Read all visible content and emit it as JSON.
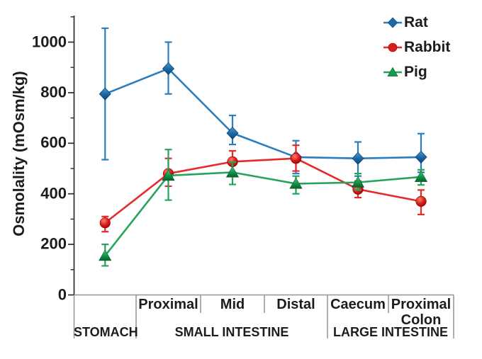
{
  "chart_data": {
    "type": "line",
    "title": "",
    "ylabel": "Osmolality (mOsm/kg)",
    "xlabel": "",
    "ylim": [
      0,
      1105
    ],
    "grid": "off",
    "legend_position": "top-right",
    "yticks": [
      0,
      200,
      400,
      600,
      800,
      1000
    ],
    "ytick_labels": [
      "0",
      "200",
      "400",
      "600",
      "800",
      "1000"
    ],
    "minor_yticks": [
      100,
      300,
      500,
      700,
      900,
      1100
    ],
    "x_axis": {
      "cells": [
        "",
        "Proximal",
        "Mid",
        "Distal",
        "Caecum",
        "Proximal Colon"
      ],
      "regions": [
        {
          "label": "STOMACH",
          "cells": [
            0,
            0
          ]
        },
        {
          "label": "SMALL INTESTINE",
          "cells": [
            1,
            3
          ]
        },
        {
          "label": "LARGE INTESTINE",
          "cells": [
            4,
            5
          ]
        }
      ]
    },
    "series": [
      {
        "name": "Rat",
        "marker": "diamond",
        "color": "#2b7ebd",
        "marker_colors": {
          "light": "#4a9ad2",
          "mid": "#1d6aa8",
          "dark": "#0d466f"
        },
        "values": [
          795,
          895,
          640,
          545,
          540,
          545
        ],
        "error_low": [
          535,
          795,
          595,
          480,
          470,
          485
        ],
        "error_high": [
          1055,
          1000,
          710,
          610,
          605,
          638
        ]
      },
      {
        "name": "Rabbit",
        "marker": "circle",
        "color": "#e52a28",
        "marker_colors": {
          "light": "#ff8266",
          "mid": "#d81f1f",
          "dark": "#9a0505"
        },
        "values": [
          285,
          480,
          527,
          540,
          418,
          370
        ],
        "error_low": [
          250,
          430,
          485,
          490,
          385,
          318
        ],
        "error_high": [
          310,
          540,
          570,
          592,
          450,
          415
        ]
      },
      {
        "name": "Pig",
        "marker": "triangle",
        "color": "#27a35c",
        "marker_colors": {
          "light": "#4cc47c",
          "mid": "#129a4e",
          "dark": "#0a5e2c"
        },
        "values": [
          155,
          472,
          485,
          440,
          445,
          467
        ],
        "error_low": [
          115,
          375,
          437,
          400,
          415,
          435
        ],
        "error_high": [
          200,
          575,
          525,
          470,
          480,
          495
        ]
      }
    ]
  }
}
